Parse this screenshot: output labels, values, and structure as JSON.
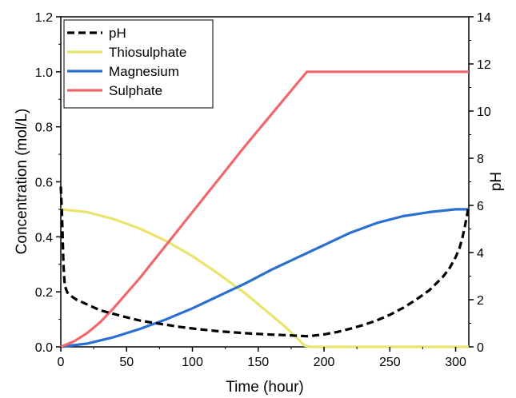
{
  "chart_data": {
    "type": "line",
    "xlabel": "Time (hour)",
    "ylabel_left": "Concentration (mol/L)",
    "ylabel_right": "pH",
    "xlim": [
      0,
      310
    ],
    "ylim_left": [
      0,
      1.2
    ],
    "ylim_right": [
      0,
      14
    ],
    "x_ticks": [
      0,
      50,
      100,
      150,
      200,
      250,
      300
    ],
    "y_left_ticks": [
      0.0,
      0.2,
      0.4,
      0.6,
      0.8,
      1.0,
      1.2
    ],
    "y_right_ticks": [
      0,
      2,
      4,
      6,
      8,
      10,
      12,
      14
    ],
    "x_tick_labels": [
      "0",
      "50",
      "100",
      "150",
      "200",
      "250",
      "300"
    ],
    "y_left_tick_labels": [
      "0.0",
      "0.2",
      "0.4",
      "0.6",
      "0.8",
      "1.0",
      "1.2"
    ],
    "y_right_tick_labels": [
      "0",
      "2",
      "4",
      "6",
      "8",
      "10",
      "12",
      "14"
    ],
    "grid": false,
    "legend_position": "top-left",
    "series": [
      {
        "name": "pH",
        "axis": "right",
        "color": "#000000",
        "dashed": true,
        "x": [
          0,
          1,
          2,
          3,
          5,
          8,
          12,
          20,
          30,
          40,
          50,
          60,
          70,
          80,
          90,
          100,
          110,
          120,
          130,
          140,
          150,
          160,
          170,
          180,
          187,
          190,
          200,
          210,
          220,
          230,
          240,
          250,
          260,
          270,
          280,
          290,
          295,
          300,
          303,
          305,
          307,
          308,
          309,
          310
        ],
        "values": [
          6.8,
          5.5,
          3.5,
          2.6,
          2.3,
          2.15,
          2.0,
          1.8,
          1.55,
          1.4,
          1.25,
          1.12,
          1.02,
          0.94,
          0.85,
          0.78,
          0.72,
          0.66,
          0.62,
          0.58,
          0.55,
          0.52,
          0.5,
          0.47,
          0.45,
          0.46,
          0.53,
          0.63,
          0.77,
          0.93,
          1.12,
          1.36,
          1.65,
          2.0,
          2.4,
          2.95,
          3.3,
          3.8,
          4.2,
          4.6,
          5.1,
          5.4,
          5.7,
          6.0
        ]
      },
      {
        "name": "Thiosulphate",
        "axis": "left",
        "color": "#e8e46e",
        "dashed": false,
        "x": [
          0,
          20,
          40,
          60,
          80,
          100,
          120,
          140,
          160,
          170,
          180,
          185,
          190,
          220,
          250,
          280,
          310
        ],
        "values": [
          0.5,
          0.49,
          0.465,
          0.43,
          0.385,
          0.33,
          0.265,
          0.195,
          0.115,
          0.075,
          0.03,
          0.005,
          0.0,
          0.0,
          0.0,
          0.0,
          0.0
        ]
      },
      {
        "name": "Magnesium",
        "axis": "left",
        "color": "#2a6fd1",
        "dashed": false,
        "x": [
          0,
          20,
          40,
          60,
          80,
          100,
          120,
          140,
          160,
          180,
          200,
          220,
          240,
          260,
          280,
          300,
          310
        ],
        "values": [
          0.0,
          0.012,
          0.035,
          0.065,
          0.1,
          0.14,
          0.185,
          0.23,
          0.28,
          0.325,
          0.37,
          0.415,
          0.45,
          0.475,
          0.49,
          0.5,
          0.5
        ]
      },
      {
        "name": "Sulphate",
        "axis": "left",
        "color": "#f0686b",
        "dashed": false,
        "x": [
          0,
          10,
          20,
          30,
          40,
          60,
          80,
          100,
          120,
          140,
          160,
          180,
          187,
          200,
          250,
          300,
          310
        ],
        "values": [
          0.0,
          0.02,
          0.05,
          0.09,
          0.14,
          0.25,
          0.37,
          0.49,
          0.61,
          0.73,
          0.845,
          0.96,
          1.0,
          1.0,
          1.0,
          1.0,
          1.0
        ]
      }
    ]
  }
}
